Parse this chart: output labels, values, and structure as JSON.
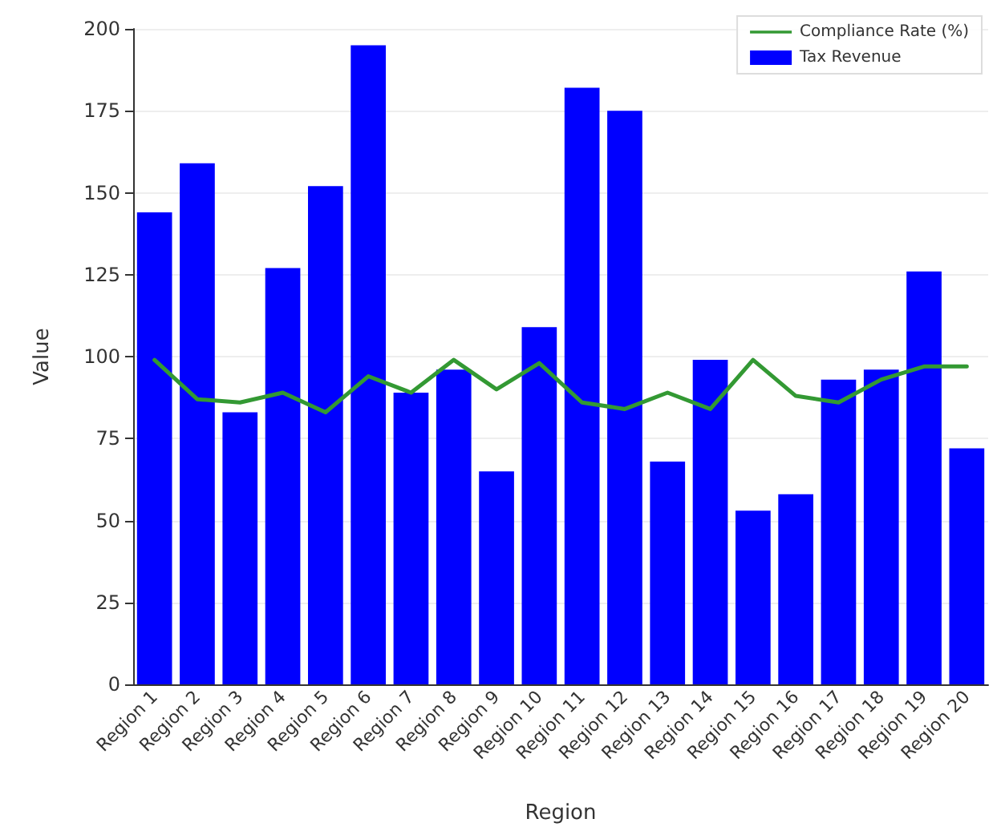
{
  "chart_data": {
    "type": "bar",
    "xlabel": "Region",
    "ylabel": "Value",
    "categories": [
      "Region 1",
      "Region 2",
      "Region 3",
      "Region 4",
      "Region 5",
      "Region 6",
      "Region 7",
      "Region 8",
      "Region 9",
      "Region 10",
      "Region 11",
      "Region 12",
      "Region 13",
      "Region 14",
      "Region 15",
      "Region 16",
      "Region 17",
      "Region 18",
      "Region 19",
      "Region 20"
    ],
    "series": [
      {
        "name": "Compliance Rate (%)",
        "type": "line",
        "color": "#339933",
        "values": [
          99,
          87,
          86,
          89,
          83,
          94,
          89,
          99,
          90,
          98,
          86,
          84,
          89,
          84,
          99,
          88,
          86,
          93,
          97,
          97
        ]
      },
      {
        "name": "Tax Revenue",
        "color": "#0000ff",
        "values": [
          144,
          159,
          83,
          127,
          152,
          195,
          89,
          96,
          65,
          109,
          182,
          175,
          68,
          99,
          53,
          58,
          93,
          96,
          126,
          72
        ]
      }
    ],
    "ylim": [
      0,
      200
    ],
    "yticks": [
      0,
      25,
      50,
      75,
      100,
      125,
      150,
      175,
      200
    ],
    "grid": "y",
    "legend": "top right",
    "marker": "none",
    "line_style": "solid"
  }
}
